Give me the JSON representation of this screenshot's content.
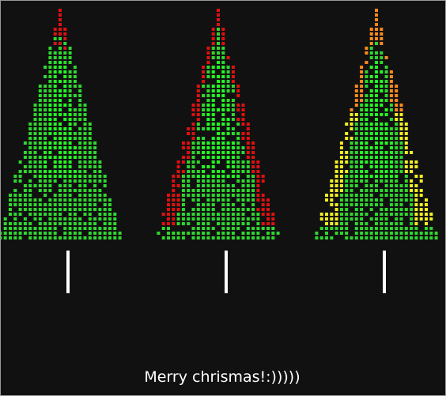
{
  "message": "Merry chrismas!:)))))"
}
